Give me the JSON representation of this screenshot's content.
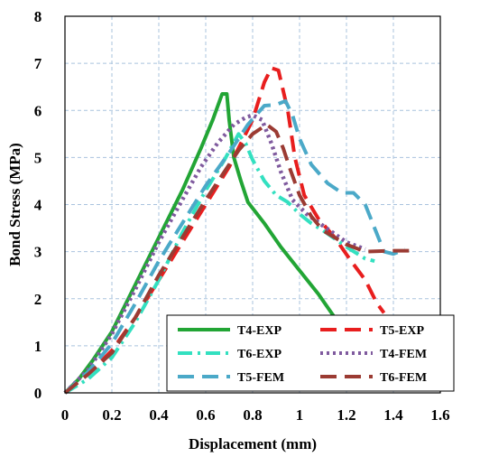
{
  "chart_data": {
    "type": "line",
    "xlabel": "Displacement (mm)",
    "ylabel": "Bond Stress (MPa)",
    "xlim": [
      0,
      1.6
    ],
    "ylim": [
      0,
      8
    ],
    "xticks": [
      0,
      0.2,
      0.4,
      0.6,
      0.8,
      1,
      1.2,
      1.4,
      1.6
    ],
    "xtick_labels": [
      "0",
      "0.2",
      "0.4",
      "0.6",
      "0.8",
      "1",
      "1.2",
      "1.4",
      "1.6"
    ],
    "yticks": [
      0,
      1,
      2,
      3,
      4,
      5,
      6,
      7,
      8
    ],
    "ytick_labels": [
      "0",
      "1",
      "2",
      "3",
      "4",
      "5",
      "6",
      "7",
      "8"
    ],
    "grid": true,
    "legend_position": "bottom-right",
    "series": [
      {
        "name": "T4-EXP",
        "color": "#22a535",
        "dash": "solid",
        "points": [
          [
            0,
            0
          ],
          [
            0.06,
            0.3
          ],
          [
            0.12,
            0.7
          ],
          [
            0.2,
            1.3
          ],
          [
            0.3,
            2.3
          ],
          [
            0.4,
            3.3
          ],
          [
            0.5,
            4.3
          ],
          [
            0.58,
            5.2
          ],
          [
            0.63,
            5.8
          ],
          [
            0.67,
            6.35
          ],
          [
            0.69,
            6.35
          ],
          [
            0.7,
            5.8
          ],
          [
            0.72,
            5.0
          ],
          [
            0.75,
            4.5
          ],
          [
            0.78,
            4.05
          ],
          [
            0.85,
            3.6
          ],
          [
            0.92,
            3.1
          ],
          [
            1.0,
            2.6
          ],
          [
            1.08,
            2.1
          ],
          [
            1.15,
            1.6
          ],
          [
            1.2,
            1.1
          ],
          [
            1.23,
            0.7
          ]
        ]
      },
      {
        "name": "T5-EXP",
        "color": "#e81e1e",
        "dash": "long",
        "points": [
          [
            0,
            0
          ],
          [
            0.1,
            0.4
          ],
          [
            0.2,
            0.9
          ],
          [
            0.3,
            1.6
          ],
          [
            0.4,
            2.4
          ],
          [
            0.5,
            3.2
          ],
          [
            0.6,
            4.0
          ],
          [
            0.7,
            4.8
          ],
          [
            0.8,
            5.8
          ],
          [
            0.85,
            6.6
          ],
          [
            0.88,
            6.9
          ],
          [
            0.91,
            6.85
          ],
          [
            0.95,
            6.0
          ],
          [
            0.98,
            5.0
          ],
          [
            1.02,
            4.2
          ],
          [
            1.08,
            3.7
          ],
          [
            1.15,
            3.3
          ],
          [
            1.22,
            2.8
          ],
          [
            1.28,
            2.4
          ],
          [
            1.33,
            1.9
          ],
          [
            1.36,
            1.7
          ]
        ]
      },
      {
        "name": "T6-EXP",
        "color": "#33e0c0",
        "dash": "dashdot",
        "points": [
          [
            0,
            0
          ],
          [
            0.1,
            0.3
          ],
          [
            0.2,
            0.75
          ],
          [
            0.3,
            1.5
          ],
          [
            0.4,
            2.4
          ],
          [
            0.5,
            3.4
          ],
          [
            0.6,
            4.3
          ],
          [
            0.68,
            4.95
          ],
          [
            0.74,
            5.5
          ],
          [
            0.77,
            5.3
          ],
          [
            0.8,
            4.95
          ],
          [
            0.85,
            4.5
          ],
          [
            0.9,
            4.2
          ],
          [
            0.95,
            4.05
          ],
          [
            1.0,
            3.8
          ],
          [
            1.05,
            3.6
          ],
          [
            1.1,
            3.45
          ],
          [
            1.2,
            3.1
          ],
          [
            1.28,
            2.85
          ],
          [
            1.32,
            2.8
          ]
        ]
      },
      {
        "name": "T4-FEM",
        "color": "#7f5a9e",
        "dash": "dot",
        "points": [
          [
            0,
            0
          ],
          [
            0.1,
            0.5
          ],
          [
            0.2,
            1.25
          ],
          [
            0.3,
            2.2
          ],
          [
            0.4,
            3.2
          ],
          [
            0.5,
            4.1
          ],
          [
            0.58,
            4.8
          ],
          [
            0.65,
            5.3
          ],
          [
            0.72,
            5.7
          ],
          [
            0.77,
            5.85
          ],
          [
            0.8,
            5.9
          ],
          [
            0.84,
            5.8
          ],
          [
            0.88,
            5.3
          ],
          [
            0.92,
            4.7
          ],
          [
            0.97,
            4.1
          ],
          [
            1.03,
            3.8
          ],
          [
            1.1,
            3.55
          ],
          [
            1.2,
            3.2
          ],
          [
            1.28,
            3.05
          ]
        ]
      },
      {
        "name": "T5-FEM",
        "color": "#4ba9c8",
        "dash": "long",
        "points": [
          [
            0,
            0
          ],
          [
            0.1,
            0.45
          ],
          [
            0.2,
            1.05
          ],
          [
            0.3,
            1.9
          ],
          [
            0.4,
            2.8
          ],
          [
            0.5,
            3.6
          ],
          [
            0.6,
            4.4
          ],
          [
            0.7,
            5.1
          ],
          [
            0.78,
            5.7
          ],
          [
            0.85,
            6.1
          ],
          [
            0.9,
            6.12
          ],
          [
            0.94,
            6.2
          ],
          [
            0.97,
            5.9
          ],
          [
            1.0,
            5.4
          ],
          [
            1.05,
            4.85
          ],
          [
            1.12,
            4.45
          ],
          [
            1.18,
            4.25
          ],
          [
            1.23,
            4.25
          ],
          [
            1.28,
            4.0
          ],
          [
            1.32,
            3.5
          ],
          [
            1.36,
            3.0
          ],
          [
            1.4,
            2.95
          ],
          [
            1.45,
            3.05
          ]
        ]
      },
      {
        "name": "T6-FEM",
        "color": "#9b3b33",
        "dash": "long",
        "points": [
          [
            0,
            0
          ],
          [
            0.1,
            0.4
          ],
          [
            0.2,
            0.85
          ],
          [
            0.3,
            1.6
          ],
          [
            0.4,
            2.5
          ],
          [
            0.5,
            3.3
          ],
          [
            0.6,
            4.1
          ],
          [
            0.68,
            4.7
          ],
          [
            0.74,
            5.15
          ],
          [
            0.8,
            5.5
          ],
          [
            0.86,
            5.7
          ],
          [
            0.9,
            5.55
          ],
          [
            0.93,
            5.2
          ],
          [
            0.96,
            4.75
          ],
          [
            1.0,
            4.2
          ],
          [
            1.05,
            3.75
          ],
          [
            1.1,
            3.45
          ],
          [
            1.2,
            3.15
          ],
          [
            1.28,
            3.0
          ],
          [
            1.4,
            3.02
          ],
          [
            1.5,
            3.02
          ]
        ]
      }
    ]
  }
}
